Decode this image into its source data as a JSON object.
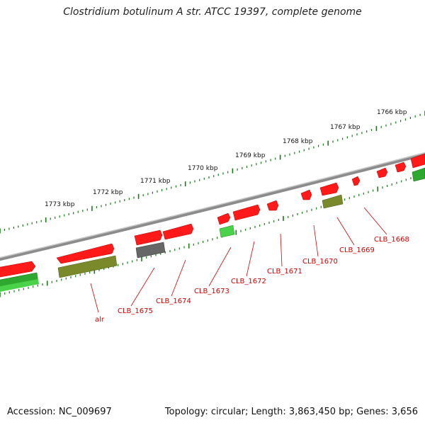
{
  "title": "Clostridium botulinum A str. ATCC 19397, complete genome",
  "accession": "Accession: NC_009697",
  "stats": "Topology: circular; Length: 3,863,450 bp; Genes: 3,656",
  "scale_labels": [
    "1773 kbp",
    "1772 kbp",
    "1771 kbp",
    "1770 kbp",
    "1769 kbp",
    "1768 kbp",
    "1767 kbp",
    "1766 kbp"
  ],
  "gene_labels": [
    "alr",
    "CLB_1675",
    "CLB_1674",
    "CLB_1673",
    "CLB_1672",
    "CLB_1671",
    "CLB_1670",
    "CLB_1669",
    "CLB_1668"
  ],
  "colors": {
    "forward_gene": "#ff1010",
    "dark_gene": "#666666",
    "green_gene": "#2ea82e",
    "light_green_gene": "#4ad24a",
    "olive_gene": "#7a8a2a",
    "backbone": "#808080",
    "tick": "#1a7a1a",
    "label": "#d10000"
  }
}
